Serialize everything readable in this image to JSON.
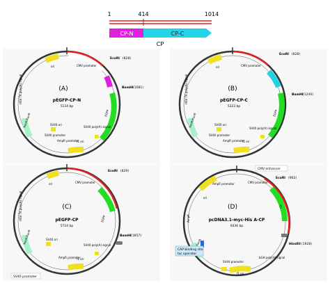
{
  "scale_bar": {
    "start": "1",
    "split": "414",
    "end": "1014",
    "segment_n": "CP-N",
    "segment_c": "CP-C",
    "label": "CP",
    "color_n": "#e020e0",
    "color_c": "#22d3e8",
    "color_line": "#e02020"
  },
  "plasmids": [
    {
      "id": "A",
      "panel_label": "(A)",
      "name": "pEGFP-CP-N",
      "size": "5134 bp",
      "sites": [
        {
          "name": "EcoRI",
          "pos": "(828)"
        },
        {
          "name": "BamHI",
          "pos": "(1081)"
        }
      ],
      "features": [
        "CMV enhancer",
        "CMV promoter",
        "CP-N",
        "EGFP",
        "SV40 poly(A) signal",
        "f1 ori",
        "SV40 ori",
        "SV40 promoter",
        "AmpR promoter",
        "NeoR/KanR",
        "HSV TK poly(A) signal",
        "ori"
      ]
    },
    {
      "id": "B",
      "panel_label": "(B)",
      "name": "pEGFP-CP-C",
      "size": "5323 bp",
      "sites": [
        {
          "name": "EcoRI",
          "pos": "(828)"
        },
        {
          "name": "BamHI",
          "pos": "(1240)"
        }
      ],
      "features": [
        "CMV enhancer",
        "CMV promoter",
        "CP-C",
        "EGFP",
        "SV40 poly(A) signal",
        "f1 ori",
        "SV40 ori",
        "SV40 promoter",
        "AmpR promoter",
        "NeoR/KanR",
        "HSV TK poly(A) signal",
        "ori"
      ]
    },
    {
      "id": "C",
      "panel_label": "(C)",
      "name": "pEGFP-CP",
      "size": "5724 bp",
      "sites": [
        {
          "name": "EcoRI",
          "pos": "(829)"
        },
        {
          "name": "BamHI",
          "pos": "(1857)"
        }
      ],
      "features": [
        "CMV enhancer",
        "CMV promoter",
        "CP",
        "EGFP",
        "SV40 poly(A) signal",
        "f1 ori",
        "SV40 ori",
        "AmpR promoter",
        "NeoR/KanR",
        "HSV TK poly(A) signal",
        "ori"
      ],
      "callout": "SV40 promoter"
    },
    {
      "id": "D",
      "panel_label": "(D)",
      "name": "pcDNA3.1-myc-His A-CP",
      "size": "6436 bp",
      "sites": [
        {
          "name": "EcoRI",
          "pos": "(902)"
        },
        {
          "name": "HindIII",
          "pos": "(1928)"
        }
      ],
      "features": [
        "CMV promoter",
        "CP",
        "bGH poly(A) signal",
        "f1 ori",
        "SV40 promoter",
        "NeoR/KanR",
        "SV40 poly(A) signal",
        "AmpR promoter",
        "ori",
        "AmpR"
      ],
      "callout_top": "CMV enhancer",
      "callout_cap": "CAP binding site",
      "callout_lac": "lac operator"
    }
  ]
}
